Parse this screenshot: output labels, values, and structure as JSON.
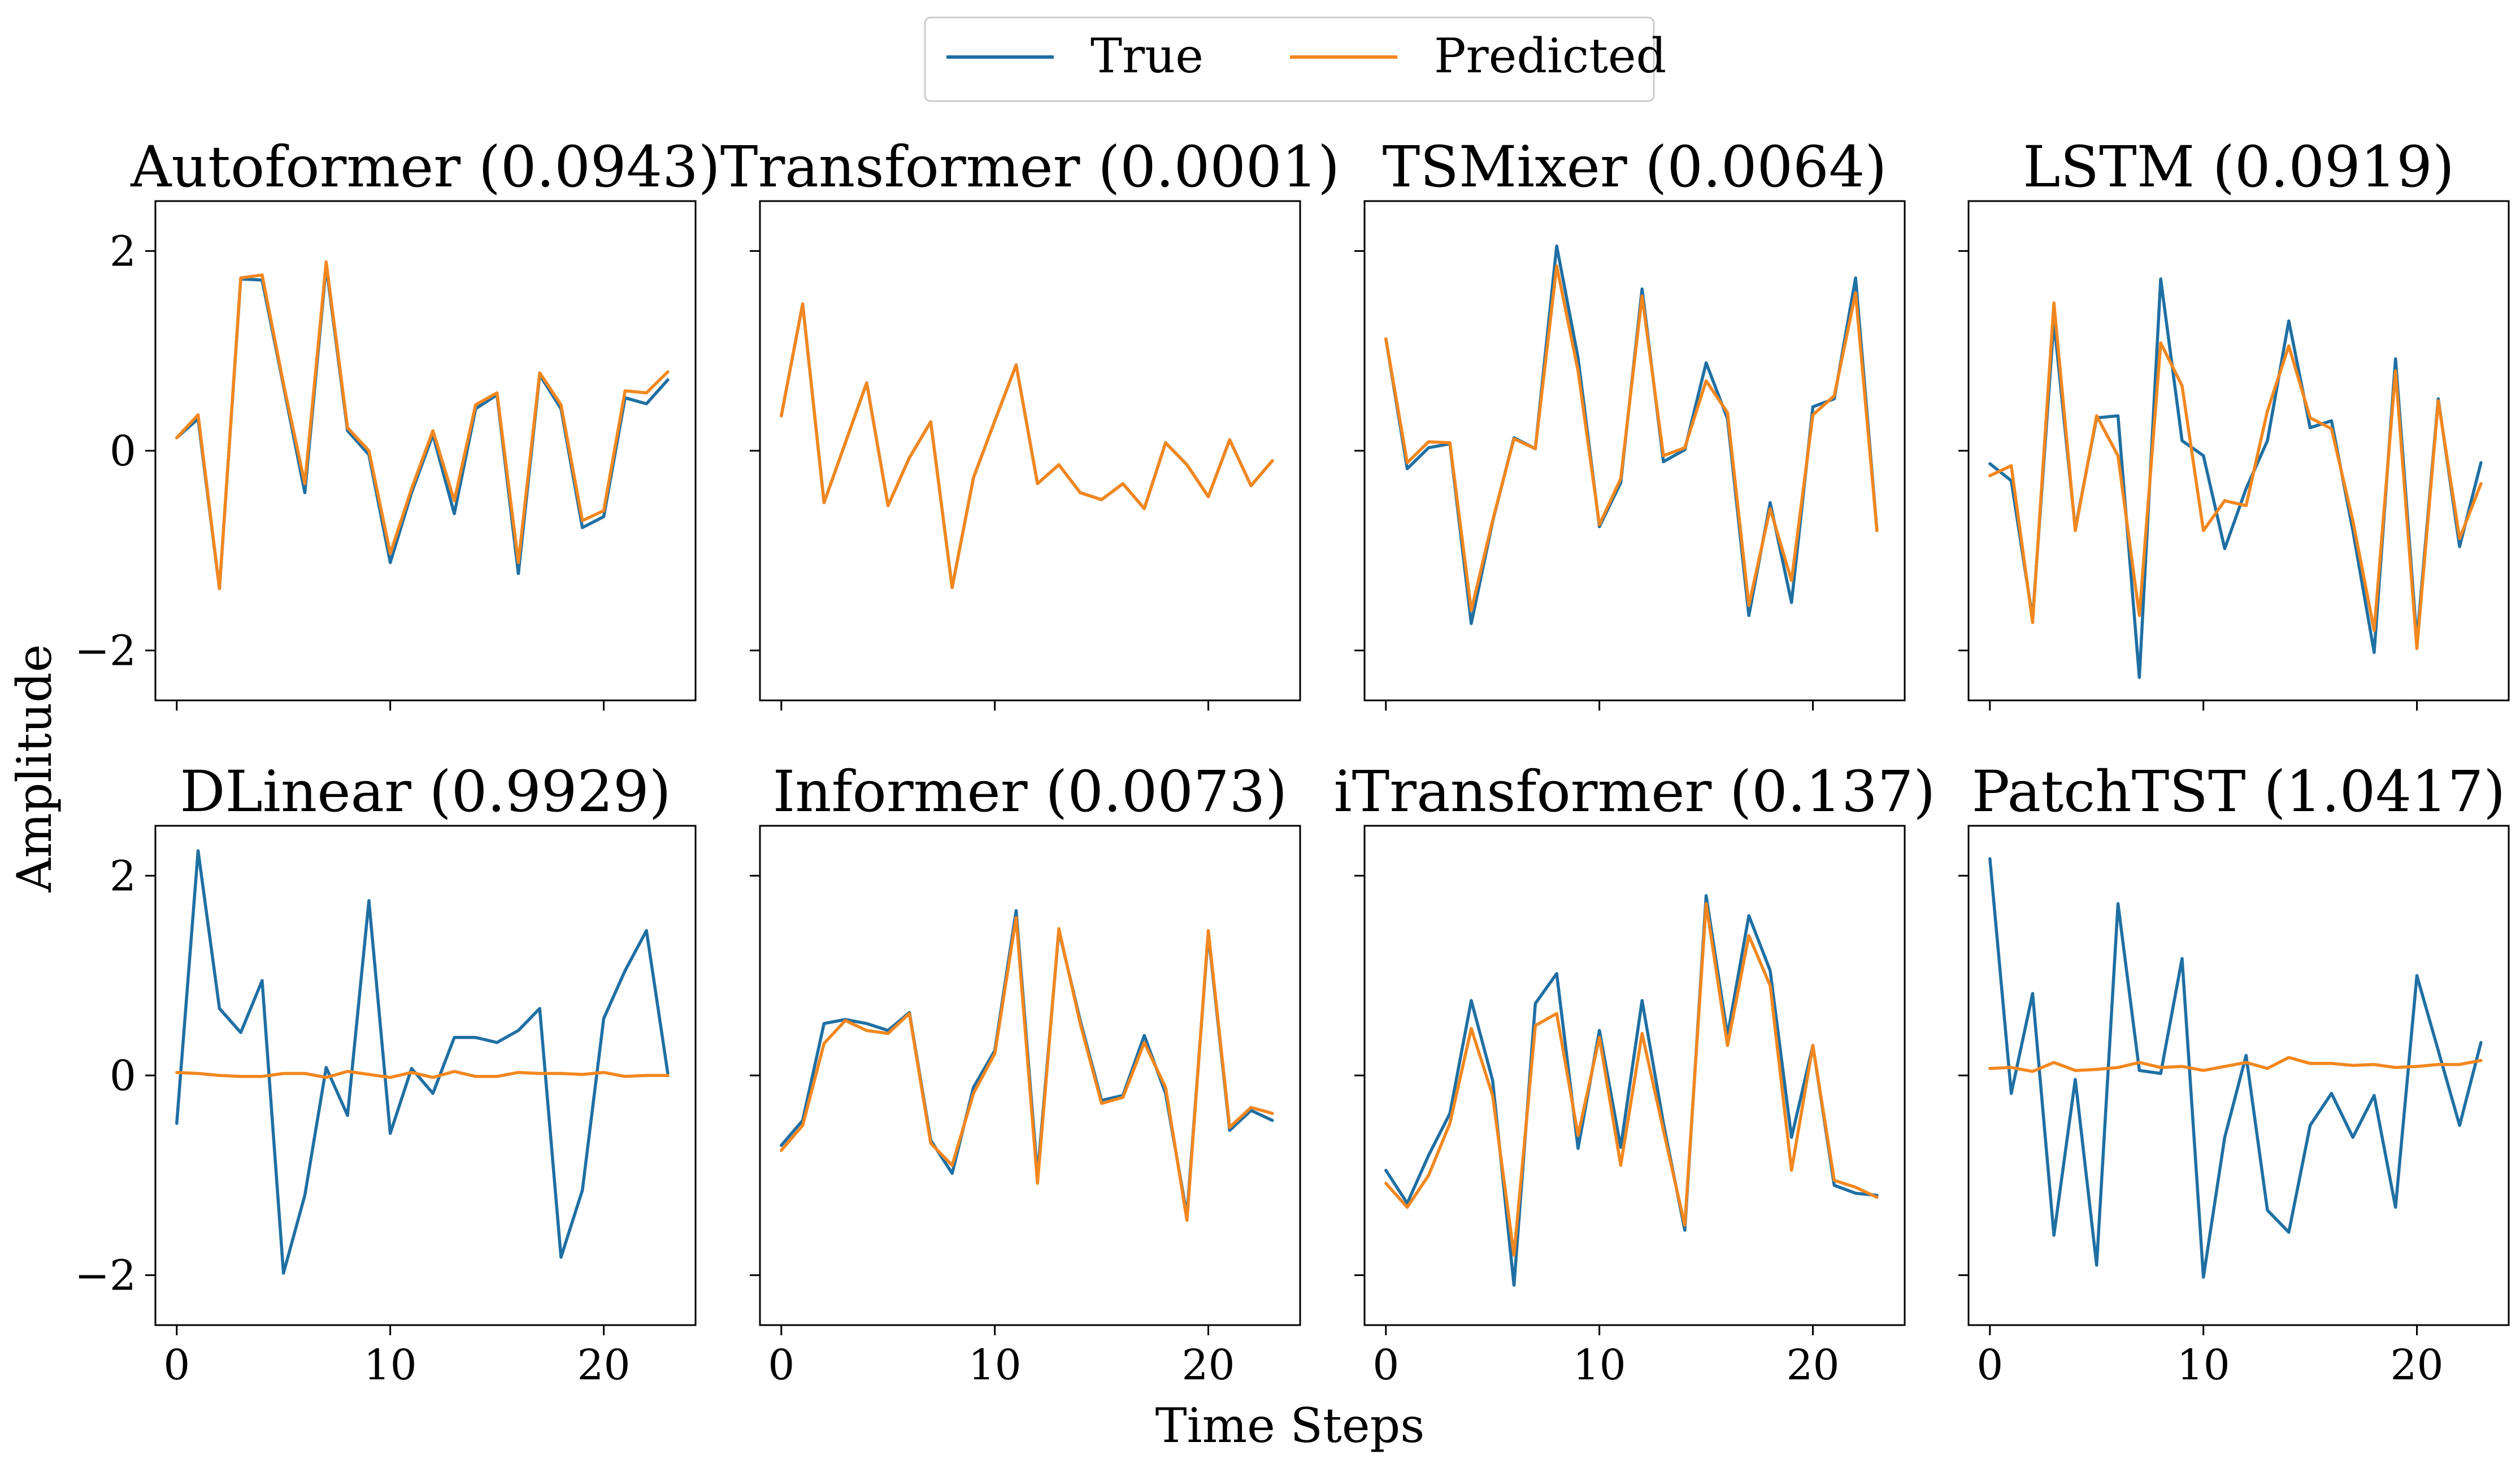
{
  "figure": {
    "xlabel": "Time Steps",
    "ylabel": "Amplitude",
    "legend": {
      "placement": "top-center",
      "entries": [
        "True",
        "Predicted"
      ]
    },
    "colors": {
      "true": "#1f6fa3",
      "predicted": "#f2871f"
    }
  },
  "chart_data": [
    {
      "type": "line",
      "title": "Autoformer (0.0943)",
      "x": [
        0,
        1,
        2,
        3,
        4,
        5,
        6,
        7,
        8,
        9,
        10,
        11,
        12,
        13,
        14,
        15,
        16,
        17,
        18,
        19,
        20,
        21,
        22,
        23
      ],
      "xlim": [
        -1,
        24.3
      ],
      "ylim": [
        -2.5,
        2.5
      ],
      "xticks": [
        0,
        10,
        20
      ],
      "yticks": [
        -2,
        0,
        2
      ],
      "series": [
        {
          "name": "True",
          "values": [
            0.13,
            0.32,
            -1.38,
            1.72,
            1.71,
            0.65,
            -0.42,
            1.85,
            0.2,
            -0.04,
            -1.12,
            -0.42,
            0.16,
            -0.63,
            0.42,
            0.56,
            -1.23,
            0.76,
            0.42,
            -0.77,
            -0.66,
            0.53,
            0.47,
            0.71
          ]
        },
        {
          "name": "Predicted",
          "values": [
            0.13,
            0.36,
            -1.38,
            1.73,
            1.76,
            0.67,
            -0.33,
            1.89,
            0.23,
            0.0,
            -1.03,
            -0.38,
            0.2,
            -0.5,
            0.46,
            0.58,
            -1.12,
            0.78,
            0.46,
            -0.7,
            -0.6,
            0.6,
            0.58,
            0.79
          ]
        }
      ]
    },
    {
      "type": "line",
      "title": "Transformer (0.0001)",
      "x": [
        0,
        1,
        2,
        3,
        4,
        5,
        6,
        7,
        8,
        9,
        10,
        11,
        12,
        13,
        14,
        15,
        16,
        17,
        18,
        19,
        20,
        21,
        22,
        23
      ],
      "xlim": [
        -1,
        24.3
      ],
      "ylim": [
        -2.5,
        2.5
      ],
      "xticks": [
        0,
        10,
        20
      ],
      "yticks": [
        -2,
        0,
        2
      ],
      "series": [
        {
          "name": "True",
          "values": [
            0.35,
            1.47,
            -0.52,
            0.08,
            0.68,
            -0.55,
            -0.07,
            0.29,
            -1.37,
            -0.27,
            0.3,
            0.86,
            -0.33,
            -0.14,
            -0.42,
            -0.49,
            -0.33,
            -0.58,
            0.08,
            -0.14,
            -0.46,
            0.11,
            -0.35,
            -0.1
          ]
        },
        {
          "name": "Predicted",
          "values": [
            0.35,
            1.47,
            -0.52,
            0.08,
            0.68,
            -0.55,
            -0.07,
            0.29,
            -1.37,
            -0.27,
            0.3,
            0.86,
            -0.33,
            -0.14,
            -0.42,
            -0.49,
            -0.33,
            -0.58,
            0.08,
            -0.14,
            -0.46,
            0.11,
            -0.35,
            -0.1
          ]
        }
      ]
    },
    {
      "type": "line",
      "title": "TSMixer (0.0064)",
      "x": [
        0,
        1,
        2,
        3,
        4,
        5,
        6,
        7,
        8,
        9,
        10,
        11,
        12,
        13,
        14,
        15,
        16,
        17,
        18,
        19,
        20,
        21,
        22,
        23
      ],
      "xlim": [
        -1,
        24.3
      ],
      "ylim": [
        -2.5,
        2.5
      ],
      "xticks": [
        0,
        10,
        20
      ],
      "yticks": [
        -2,
        0,
        2
      ],
      "series": [
        {
          "name": "True",
          "values": [
            1.12,
            -0.18,
            0.03,
            0.07,
            -1.73,
            -0.71,
            0.13,
            0.02,
            2.05,
            0.93,
            -0.76,
            -0.32,
            1.62,
            -0.11,
            0.01,
            0.88,
            0.32,
            -1.65,
            -0.52,
            -1.52,
            0.44,
            0.52,
            1.73,
            -0.8
          ]
        },
        {
          "name": "Predicted",
          "values": [
            1.12,
            -0.12,
            0.09,
            0.08,
            -1.6,
            -0.7,
            0.12,
            0.02,
            1.85,
            0.8,
            -0.74,
            -0.28,
            1.55,
            -0.05,
            0.03,
            0.7,
            0.38,
            -1.55,
            -0.58,
            -1.3,
            0.36,
            0.55,
            1.58,
            -0.8
          ]
        }
      ]
    },
    {
      "type": "line",
      "title": "LSTM (0.0919)",
      "x": [
        0,
        1,
        2,
        3,
        4,
        5,
        6,
        7,
        8,
        9,
        10,
        11,
        12,
        13,
        14,
        15,
        16,
        17,
        18,
        19,
        20,
        21,
        22,
        23
      ],
      "xlim": [
        -1,
        24.3
      ],
      "ylim": [
        -2.5,
        2.5
      ],
      "xticks": [
        0,
        10,
        20
      ],
      "yticks": [
        -2,
        0,
        2
      ],
      "series": [
        {
          "name": "True",
          "values": [
            -0.13,
            -0.3,
            -1.68,
            1.3,
            -0.78,
            0.33,
            0.35,
            -2.27,
            1.72,
            0.1,
            -0.05,
            -0.98,
            -0.38,
            0.1,
            1.3,
            0.23,
            0.3,
            -0.8,
            -2.02,
            0.92,
            -1.9,
            0.52,
            -0.96,
            -0.12
          ]
        },
        {
          "name": "Predicted",
          "values": [
            -0.25,
            -0.15,
            -1.72,
            1.48,
            -0.8,
            0.35,
            -0.05,
            -1.65,
            1.08,
            0.65,
            -0.8,
            -0.5,
            -0.55,
            0.4,
            1.05,
            0.33,
            0.22,
            -0.7,
            -1.8,
            0.8,
            -1.98,
            0.5,
            -0.88,
            -0.33
          ]
        }
      ]
    },
    {
      "type": "line",
      "title": "DLinear (0.9929)",
      "x": [
        0,
        1,
        2,
        3,
        4,
        5,
        6,
        7,
        8,
        9,
        10,
        11,
        12,
        13,
        14,
        15,
        16,
        17,
        18,
        19,
        20,
        21,
        22,
        23
      ],
      "xlim": [
        -1,
        24.3
      ],
      "ylim": [
        -2.5,
        2.5
      ],
      "xticks": [
        0,
        10,
        20
      ],
      "yticks": [
        -2,
        0,
        2
      ],
      "series": [
        {
          "name": "True",
          "values": [
            -0.48,
            2.25,
            0.67,
            0.43,
            0.95,
            -1.98,
            -1.2,
            0.08,
            -0.4,
            1.75,
            -0.58,
            0.07,
            -0.18,
            0.38,
            0.38,
            0.33,
            0.45,
            0.67,
            -1.82,
            -1.15,
            0.57,
            1.05,
            1.45,
            0.02
          ]
        },
        {
          "name": "Predicted",
          "values": [
            0.03,
            0.02,
            0.0,
            -0.01,
            -0.01,
            0.02,
            0.02,
            -0.02,
            0.04,
            0.01,
            -0.02,
            0.03,
            -0.02,
            0.04,
            -0.01,
            -0.01,
            0.03,
            0.02,
            0.02,
            0.01,
            0.03,
            -0.01,
            0.0,
            0.0
          ]
        }
      ]
    },
    {
      "type": "line",
      "title": "Informer (0.0073)",
      "x": [
        0,
        1,
        2,
        3,
        4,
        5,
        6,
        7,
        8,
        9,
        10,
        11,
        12,
        13,
        14,
        15,
        16,
        17,
        18,
        19,
        20,
        21,
        22,
        23
      ],
      "xlim": [
        -1,
        24.3
      ],
      "ylim": [
        -2.5,
        2.5
      ],
      "xticks": [
        0,
        10,
        20
      ],
      "yticks": [
        -2,
        0,
        2
      ],
      "series": [
        {
          "name": "True",
          "values": [
            -0.7,
            -0.45,
            0.52,
            0.56,
            0.52,
            0.45,
            0.63,
            -0.65,
            -0.98,
            -0.12,
            0.25,
            1.65,
            -1.0,
            1.45,
            0.55,
            -0.25,
            -0.2,
            0.4,
            -0.18,
            -1.4,
            1.42,
            -0.55,
            -0.35,
            -0.45
          ]
        },
        {
          "name": "Predicted",
          "values": [
            -0.75,
            -0.5,
            0.32,
            0.55,
            0.45,
            0.42,
            0.62,
            -0.68,
            -0.9,
            -0.18,
            0.22,
            1.58,
            -1.08,
            1.47,
            0.52,
            -0.28,
            -0.22,
            0.33,
            -0.12,
            -1.45,
            1.45,
            -0.52,
            -0.32,
            -0.38
          ]
        }
      ]
    },
    {
      "type": "line",
      "title": "iTransformer (0.137)",
      "x": [
        0,
        1,
        2,
        3,
        4,
        5,
        6,
        7,
        8,
        9,
        10,
        11,
        12,
        13,
        14,
        15,
        16,
        17,
        18,
        19,
        20,
        21,
        22,
        23
      ],
      "xlim": [
        -1,
        24.3
      ],
      "ylim": [
        -2.5,
        2.5
      ],
      "xticks": [
        0,
        10,
        20
      ],
      "yticks": [
        -2,
        0,
        2
      ],
      "series": [
        {
          "name": "True",
          "values": [
            -0.95,
            -1.28,
            -0.8,
            -0.38,
            0.75,
            -0.05,
            -2.1,
            0.72,
            1.02,
            -0.73,
            0.45,
            -0.72,
            0.75,
            -0.48,
            -1.55,
            1.8,
            0.4,
            1.6,
            1.05,
            -0.62,
            0.3,
            -1.1,
            -1.18,
            -1.2
          ]
        },
        {
          "name": "Predicted",
          "values": [
            -1.08,
            -1.32,
            -1.0,
            -0.48,
            0.47,
            -0.2,
            -1.8,
            0.5,
            0.62,
            -0.6,
            0.38,
            -0.9,
            0.42,
            -0.55,
            -1.5,
            1.72,
            0.3,
            1.4,
            0.9,
            -0.95,
            0.3,
            -1.05,
            -1.12,
            -1.22
          ]
        }
      ]
    },
    {
      "type": "line",
      "title": "PatchTST (1.0417)",
      "x": [
        0,
        1,
        2,
        3,
        4,
        5,
        6,
        7,
        8,
        9,
        10,
        11,
        12,
        13,
        14,
        15,
        16,
        17,
        18,
        19,
        20,
        21,
        22,
        23
      ],
      "xlim": [
        -1,
        24.3
      ],
      "ylim": [
        -2.5,
        2.5
      ],
      "xticks": [
        0,
        10,
        20
      ],
      "yticks": [
        -2,
        0,
        2
      ],
      "series": [
        {
          "name": "True",
          "values": [
            2.17,
            -0.18,
            0.82,
            -1.6,
            -0.04,
            -1.9,
            1.72,
            0.05,
            0.02,
            1.17,
            -2.02,
            -0.62,
            0.2,
            -1.35,
            -1.57,
            -0.5,
            -0.18,
            -0.62,
            -0.2,
            -1.32,
            1.0,
            0.25,
            -0.5,
            0.33
          ]
        },
        {
          "name": "Predicted",
          "values": [
            0.07,
            0.08,
            0.04,
            0.13,
            0.05,
            0.06,
            0.08,
            0.13,
            0.08,
            0.09,
            0.05,
            0.09,
            0.13,
            0.07,
            0.18,
            0.12,
            0.12,
            0.1,
            0.11,
            0.08,
            0.09,
            0.11,
            0.11,
            0.15
          ]
        }
      ]
    }
  ]
}
